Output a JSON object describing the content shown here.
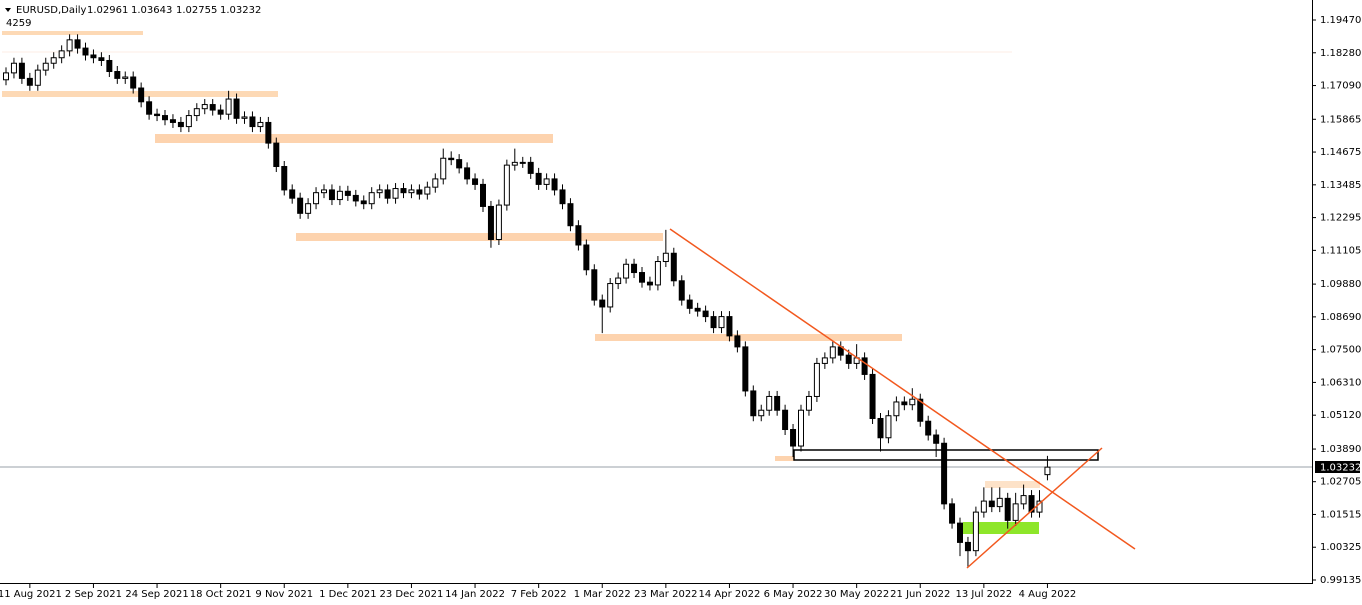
{
  "chart_data": {
    "type": "candlestick",
    "header": {
      "symbol": "EURUSD,Daily",
      "counter": "4259"
    },
    "categories": [
      null,
      null,
      null,
      "11 Aug 2021",
      null,
      null,
      null,
      null,
      null,
      null,
      null,
      "2 Sep 2021",
      null,
      null,
      null,
      null,
      null,
      null,
      null,
      "24 Sep 2021",
      null,
      null,
      null,
      null,
      null,
      null,
      null,
      "18 Oct 2021",
      null,
      null,
      null,
      null,
      null,
      null,
      null,
      "9 Nov 2021",
      null,
      null,
      null,
      null,
      null,
      null,
      null,
      "1 Dec 2021",
      null,
      null,
      null,
      null,
      null,
      null,
      null,
      "23 Dec 2021",
      null,
      null,
      null,
      null,
      null,
      null,
      null,
      "14 Jan 2022",
      null,
      null,
      null,
      null,
      null,
      null,
      null,
      "7 Feb 2022",
      null,
      null,
      null,
      null,
      null,
      null,
      null,
      "1 Mar 2022",
      null,
      null,
      null,
      null,
      null,
      null,
      null,
      "23 Mar 2022",
      null,
      null,
      null,
      null,
      null,
      null,
      null,
      "14 Apr 2022",
      null,
      null,
      null,
      null,
      null,
      null,
      null,
      "6 May 2022",
      null,
      null,
      null,
      null,
      null,
      null,
      null,
      "30 May 2022",
      null,
      null,
      null,
      null,
      null,
      null,
      null,
      "21 Jun 2022",
      null,
      null,
      null,
      null,
      null,
      null,
      null,
      "13 Jul 2022",
      null,
      null,
      null,
      null,
      null,
      null,
      null,
      "4 Aug 2022"
    ],
    "open": [
      1.173,
      1.1755,
      1.179,
      1.1735,
      1.171,
      1.1765,
      1.179,
      1.181,
      1.1835,
      1.1875,
      1.1845,
      1.182,
      1.181,
      1.18,
      1.176,
      1.1735,
      1.174,
      1.17,
      1.165,
      1.1605,
      1.16,
      1.1585,
      1.1575,
      1.156,
      1.16,
      1.1625,
      1.164,
      1.162,
      1.1605,
      1.166,
      1.159,
      1.1595,
      1.156,
      1.1575,
      1.15,
      1.1415,
      1.133,
      1.13,
      1.1245,
      1.128,
      1.132,
      1.133,
      1.1295,
      1.1325,
      1.131,
      1.129,
      1.128,
      1.132,
      1.133,
      1.13,
      1.1335,
      1.132,
      1.133,
      1.1315,
      1.134,
      1.137,
      1.1445,
      1.144,
      1.141,
      1.137,
      1.135,
      1.127,
      1.115,
      1.1275,
      1.142,
      1.143,
      1.143,
      1.139,
      1.135,
      1.137,
      1.133,
      1.128,
      1.12,
      1.113,
      1.104,
      1.093,
      1.0905,
      1.099,
      1.101,
      1.106,
      1.103,
      1.0995,
      1.0985,
      1.107,
      1.11,
      1.1,
      1.093,
      1.09,
      1.089,
      1.087,
      1.083,
      1.087,
      1.08,
      1.076,
      1.06,
      1.051,
      1.053,
      1.058,
      1.053,
      1.046,
      1.04,
      1.053,
      1.058,
      1.07,
      1.072,
      1.076,
      1.073,
      1.07,
      1.072,
      1.066,
      1.05,
      1.043,
      1.051,
      1.056,
      1.055,
      1.057,
      1.049,
      1.044,
      1.041,
      1.019,
      1.012,
      1.005,
      1.002,
      1.016,
      1.02,
      1.018,
      1.021,
      1.013,
      1.019,
      1.022,
      1.016,
      1.02961
    ],
    "high": [
      1.1775,
      1.181,
      1.181,
      1.1755,
      1.1785,
      1.181,
      1.183,
      1.1855,
      1.1895,
      1.1895,
      1.1865,
      1.184,
      1.183,
      1.182,
      1.178,
      1.176,
      1.176,
      1.172,
      1.167,
      1.1625,
      1.162,
      1.1605,
      1.1595,
      1.162,
      1.1645,
      1.166,
      1.166,
      1.164,
      1.169,
      1.168,
      1.1615,
      1.1615,
      1.1595,
      1.1595,
      1.152,
      1.1435,
      1.135,
      1.132,
      1.13,
      1.134,
      1.135,
      1.135,
      1.1345,
      1.1345,
      1.133,
      1.131,
      1.134,
      1.135,
      1.135,
      1.1355,
      1.1355,
      1.135,
      1.135,
      1.136,
      1.139,
      1.148,
      1.147,
      1.146,
      1.143,
      1.139,
      1.137,
      1.129,
      1.1295,
      1.144,
      1.148,
      1.145,
      1.145,
      1.141,
      1.139,
      1.139,
      1.135,
      1.13,
      1.122,
      1.115,
      1.106,
      1.095,
      1.101,
      1.103,
      1.108,
      1.108,
      1.105,
      1.1015,
      1.109,
      1.1185,
      1.112,
      1.102,
      1.095,
      1.092,
      1.091,
      1.089,
      1.089,
      1.089,
      1.082,
      1.078,
      1.062,
      1.055,
      1.06,
      1.06,
      1.055,
      1.048,
      1.055,
      1.06,
      1.072,
      1.074,
      1.078,
      1.078,
      1.075,
      1.077,
      1.074,
      1.068,
      1.052,
      1.053,
      1.058,
      1.058,
      1.061,
      1.059,
      1.051,
      1.046,
      1.043,
      1.021,
      1.014,
      1.007,
      1.018,
      1.025,
      1.025,
      1.025,
      1.023,
      1.023,
      1.026,
      1.024,
      1.024,
      1.03643
    ],
    "low": [
      1.171,
      1.1735,
      1.1715,
      1.169,
      1.169,
      1.1745,
      1.177,
      1.179,
      1.1815,
      1.1825,
      1.18,
      1.179,
      1.178,
      1.174,
      1.1715,
      1.1715,
      1.168,
      1.163,
      1.1585,
      1.158,
      1.1565,
      1.1555,
      1.154,
      1.154,
      1.158,
      1.1605,
      1.16,
      1.1585,
      1.1585,
      1.157,
      1.157,
      1.154,
      1.154,
      1.148,
      1.1395,
      1.131,
      1.128,
      1.1225,
      1.1225,
      1.126,
      1.13,
      1.1275,
      1.1275,
      1.129,
      1.127,
      1.126,
      1.126,
      1.13,
      1.128,
      1.128,
      1.13,
      1.13,
      1.1295,
      1.1295,
      1.132,
      1.135,
      1.142,
      1.139,
      1.135,
      1.133,
      1.125,
      1.112,
      1.113,
      1.1255,
      1.14,
      1.141,
      1.137,
      1.133,
      1.133,
      1.131,
      1.126,
      1.118,
      1.111,
      1.102,
      1.091,
      1.081,
      1.0885,
      1.097,
      1.099,
      1.101,
      1.0975,
      1.0965,
      1.0965,
      1.105,
      1.098,
      1.091,
      1.088,
      1.087,
      1.085,
      1.081,
      1.081,
      1.078,
      1.074,
      1.058,
      1.049,
      1.049,
      1.051,
      1.051,
      1.044,
      1.036,
      1.038,
      1.051,
      1.056,
      1.068,
      1.07,
      1.071,
      1.068,
      1.068,
      1.064,
      1.048,
      1.038,
      1.041,
      1.049,
      1.053,
      1.053,
      1.047,
      1.042,
      1.036,
      1.017,
      1.01,
      1.0,
      0.996,
      1.0,
      1.014,
      1.016,
      1.016,
      1.01,
      1.011,
      1.017,
      1.014,
      1.014,
      1.02755
    ],
    "close": [
      1.1755,
      1.179,
      1.1735,
      1.171,
      1.1765,
      1.179,
      1.181,
      1.1835,
      1.1875,
      1.1845,
      1.182,
      1.181,
      1.18,
      1.176,
      1.1735,
      1.174,
      1.17,
      1.165,
      1.1605,
      1.16,
      1.1585,
      1.1575,
      1.156,
      1.16,
      1.1625,
      1.164,
      1.162,
      1.1605,
      1.166,
      1.159,
      1.1595,
      1.156,
      1.1575,
      1.15,
      1.1415,
      1.133,
      1.13,
      1.1245,
      1.128,
      1.132,
      1.133,
      1.1295,
      1.1325,
      1.131,
      1.129,
      1.128,
      1.132,
      1.133,
      1.13,
      1.1335,
      1.132,
      1.133,
      1.1315,
      1.134,
      1.137,
      1.1445,
      1.144,
      1.141,
      1.137,
      1.135,
      1.127,
      1.115,
      1.1275,
      1.142,
      1.143,
      1.143,
      1.139,
      1.135,
      1.137,
      1.133,
      1.128,
      1.12,
      1.113,
      1.104,
      1.093,
      1.0905,
      1.099,
      1.101,
      1.106,
      1.103,
      1.0995,
      1.0985,
      1.107,
      1.11,
      1.1,
      1.093,
      1.09,
      1.089,
      1.087,
      1.083,
      1.087,
      1.08,
      1.076,
      1.06,
      1.051,
      1.053,
      1.058,
      1.053,
      1.046,
      1.04,
      1.053,
      1.058,
      1.07,
      1.072,
      1.076,
      1.073,
      1.07,
      1.072,
      1.066,
      1.05,
      1.043,
      1.051,
      1.056,
      1.055,
      1.057,
      1.049,
      1.044,
      1.041,
      1.019,
      1.012,
      1.005,
      1.002,
      1.016,
      1.02,
      1.018,
      1.021,
      1.013,
      1.019,
      1.022,
      1.016,
      1.02,
      1.03232
    ],
    "up_color": "#ffffff",
    "down_color": "#000000",
    "wick_color": "#000000",
    "ylim": [
      0.99026,
      1.20124
    ],
    "yticks": [
      {
        "value": 1.1947,
        "label": "1.19470"
      },
      {
        "value": 1.1828,
        "label": "1.18280"
      },
      {
        "value": 1.1709,
        "label": "1.17090"
      },
      {
        "value": 1.15865,
        "label": "1.15865"
      },
      {
        "value": 1.14675,
        "label": "1.14675"
      },
      {
        "value": 1.13485,
        "label": "1.13485"
      },
      {
        "value": 1.12295,
        "label": "1.12295"
      },
      {
        "value": 1.11105,
        "label": "1.11105"
      },
      {
        "value": 1.0988,
        "label": "1.09880"
      },
      {
        "value": 1.0869,
        "label": "1.08690"
      },
      {
        "value": 1.075,
        "label": "1.07500"
      },
      {
        "value": 1.0631,
        "label": "1.06310"
      },
      {
        "value": 1.0512,
        "label": "1.05120"
      },
      {
        "value": 1.0389,
        "label": "1.03890"
      },
      {
        "value": 1.02705,
        "label": "1.02705"
      },
      {
        "value": 1.01515,
        "label": "1.01515"
      },
      {
        "value": 1.00325,
        "label": "1.00325"
      },
      {
        "value": 0.99135,
        "label": "0.99135"
      }
    ],
    "grid": false
  }
}
